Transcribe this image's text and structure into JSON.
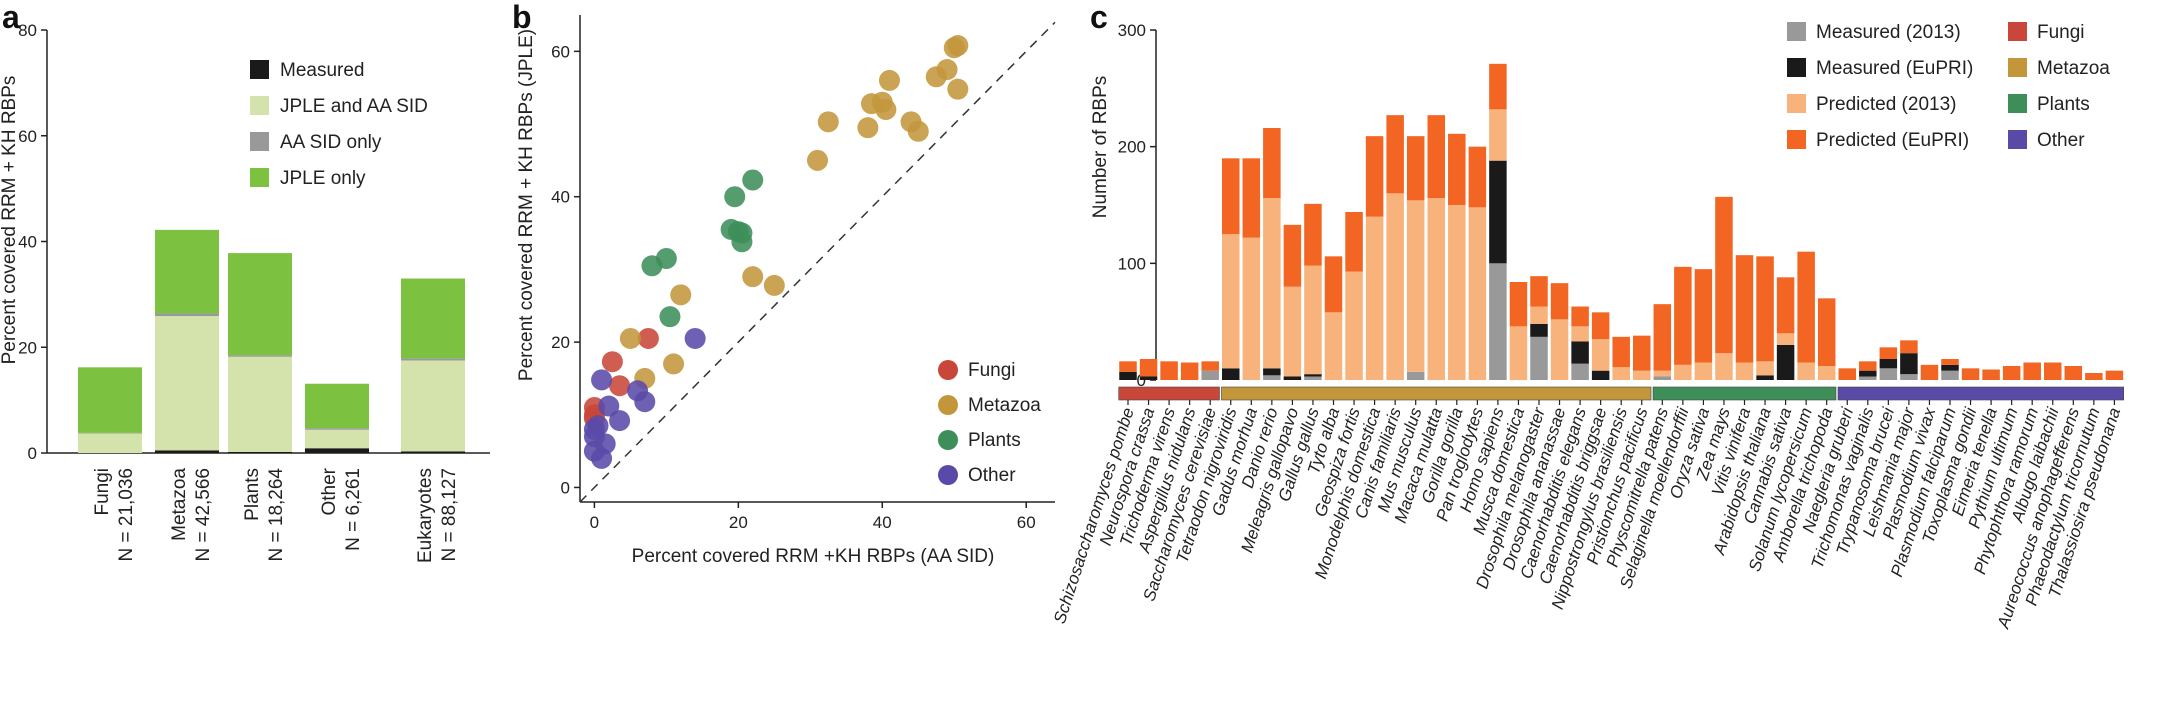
{
  "panel_labels": {
    "a": "a",
    "b": "b",
    "c": "c"
  },
  "chart_data": [
    {
      "type": "bar",
      "stacked": true,
      "title": "",
      "ylabel": "Percent covered RRM + KH RBPs",
      "ylim": [
        0,
        80
      ],
      "yticks": [
        "0",
        "20",
        "40",
        "60",
        "80"
      ],
      "categories": [
        "Fungi",
        "Metazoa",
        "Plants",
        "Other",
        "Eukaryotes"
      ],
      "category_n": [
        "N = 21,036",
        "N = 42,566",
        "N = 18,264",
        "N = 6,261",
        "N = 88,127"
      ],
      "series": [
        {
          "name": "Measured",
          "color": "#1a1a1a",
          "values": [
            0,
            0.5,
            0.2,
            0.9,
            0.3
          ]
        },
        {
          "name": "JPLE and AA SID",
          "color": "#d4e2ab",
          "values": [
            3.7,
            25.4,
            18.0,
            3.5,
            17.2
          ]
        },
        {
          "name": "AA SID only",
          "color": "#999999",
          "values": [
            0.1,
            0.5,
            0.3,
            0.3,
            0.4
          ]
        },
        {
          "name": "JPLE only",
          "color": "#7cc13f",
          "values": [
            12.4,
            15.8,
            19.3,
            8.4,
            15.1
          ]
        }
      ],
      "legend_position": "top-right"
    },
    {
      "type": "scatter",
      "xlabel": "Percent covered RRM +KH RBPs (AA SID)",
      "ylabel": "Percent covered RRM + KH RBPs (JPLE)",
      "xlim": [
        -2,
        64
      ],
      "ylim": [
        -2,
        65
      ],
      "xticks": [
        "0",
        "20",
        "40",
        "60"
      ],
      "yticks": [
        "0",
        "20",
        "40",
        "60"
      ],
      "diagonal": true,
      "legend_position": "bottom-right",
      "series": [
        {
          "name": "Fungi",
          "color": "#c8473a",
          "points": [
            [
              0,
              11
            ],
            [
              0,
              10
            ],
            [
              0,
              9.5
            ],
            [
              2.5,
              17.3
            ],
            [
              3.5,
              14
            ],
            [
              7.5,
              20.5
            ]
          ]
        },
        {
          "name": "Metazoa",
          "color": "#c3963c",
          "points": [
            [
              5,
              20.5
            ],
            [
              7,
              15
            ],
            [
              11,
              17
            ],
            [
              12,
              26.5
            ],
            [
              22,
              29
            ],
            [
              25,
              27.8
            ],
            [
              31,
              45
            ],
            [
              32.5,
              50.3
            ],
            [
              38,
              49.5
            ],
            [
              38.5,
              52.8
            ],
            [
              40,
              53
            ],
            [
              40.5,
              52
            ],
            [
              41,
              56
            ],
            [
              44,
              50.3
            ],
            [
              45,
              49
            ],
            [
              47.5,
              56.5
            ],
            [
              49,
              57.5
            ],
            [
              50,
              60.5
            ],
            [
              50.5,
              60.8
            ],
            [
              50.5,
              54.8
            ]
          ]
        },
        {
          "name": "Plants",
          "color": "#3e8e5a",
          "points": [
            [
              8,
              30.5
            ],
            [
              10,
              31.5
            ],
            [
              10.5,
              23.5
            ],
            [
              19,
              35.5
            ],
            [
              19.5,
              40
            ],
            [
              20,
              35.2
            ],
            [
              20.5,
              35
            ],
            [
              20.5,
              33.8
            ],
            [
              22,
              42.3
            ]
          ]
        },
        {
          "name": "Other",
          "color": "#5a4aa8",
          "points": [
            [
              0,
              8
            ],
            [
              0,
              7
            ],
            [
              0,
              5
            ],
            [
              1,
              4
            ],
            [
              1,
              14.8
            ],
            [
              1.5,
              6
            ],
            [
              2,
              11.2
            ],
            [
              3.5,
              9.2
            ],
            [
              6,
              13.3
            ],
            [
              7,
              11.8
            ],
            [
              14,
              20.5
            ],
            [
              0.5,
              8.5
            ]
          ]
        }
      ]
    },
    {
      "type": "bar",
      "stacked": true,
      "ylabel": "Number of RBPs",
      "ylim": [
        0,
        300
      ],
      "yticks": [
        "0",
        "100",
        "200",
        "300"
      ],
      "legend_position": "top-right",
      "series_meta": [
        {
          "name": "Measured (2013)",
          "color": "#999999"
        },
        {
          "name": "Measured (EuPRI)",
          "color": "#1a1a1a"
        },
        {
          "name": "Predicted (2013)",
          "color": "#f8b27c"
        },
        {
          "name": "Predicted (EuPRI)",
          "color": "#f26522"
        }
      ],
      "group_legend": [
        {
          "name": "Fungi",
          "color": "#c8473a"
        },
        {
          "name": "Metazoa",
          "color": "#c3963c"
        },
        {
          "name": "Plants",
          "color": "#3e8e5a"
        },
        {
          "name": "Other",
          "color": "#5a4aa8"
        }
      ],
      "species": [
        {
          "name": "Schizosaccharomyces pombe",
          "group": "Fungi",
          "m13": 0,
          "meu": 7,
          "p13": 0,
          "peu": 9
        },
        {
          "name": "Neurospora crassa",
          "group": "Fungi",
          "m13": 0,
          "meu": 3,
          "p13": 0,
          "peu": 15
        },
        {
          "name": "Trichoderma virens",
          "group": "Fungi",
          "m13": 0,
          "meu": 0,
          "p13": 0,
          "peu": 16
        },
        {
          "name": "Aspergillus nidulans",
          "group": "Fungi",
          "m13": 0,
          "meu": 0,
          "p13": 0,
          "peu": 15
        },
        {
          "name": "Saccharomyces cerevisiae",
          "group": "Fungi",
          "m13": 8,
          "meu": 0,
          "p13": 0,
          "peu": 8
        },
        {
          "name": "Tetraodon nigroviridis",
          "group": "Metazoa",
          "m13": 0,
          "meu": 10,
          "p13": 115,
          "peu": 65
        },
        {
          "name": "Gadus morhua",
          "group": "Metazoa",
          "m13": 0,
          "meu": 0,
          "p13": 122,
          "peu": 68
        },
        {
          "name": "Danio rerio",
          "group": "Metazoa",
          "m13": 4,
          "meu": 6,
          "p13": 146,
          "peu": 60
        },
        {
          "name": "Meleagris gallopavo",
          "group": "Metazoa",
          "m13": 0,
          "meu": 3,
          "p13": 77,
          "peu": 53
        },
        {
          "name": "Gallus gallus",
          "group": "Metazoa",
          "m13": 3,
          "meu": 2,
          "p13": 93,
          "peu": 53
        },
        {
          "name": "Tyto alba",
          "group": "Metazoa",
          "m13": 0,
          "meu": 0,
          "p13": 58,
          "peu": 48
        },
        {
          "name": "Geospiza fortis",
          "group": "Metazoa",
          "m13": 0,
          "meu": 0,
          "p13": 93,
          "peu": 51
        },
        {
          "name": "Monodelphis domestica",
          "group": "Metazoa",
          "m13": 0,
          "meu": 0,
          "p13": 140,
          "peu": 69
        },
        {
          "name": "Canis familiaris",
          "group": "Metazoa",
          "m13": 0,
          "meu": 0,
          "p13": 160,
          "peu": 67
        },
        {
          "name": "Mus musculus",
          "group": "Metazoa",
          "m13": 7,
          "meu": 0,
          "p13": 147,
          "peu": 55
        },
        {
          "name": "Macaca mulatta",
          "group": "Metazoa",
          "m13": 0,
          "meu": 0,
          "p13": 156,
          "peu": 71
        },
        {
          "name": "Gorilla gorilla",
          "group": "Metazoa",
          "m13": 0,
          "meu": 0,
          "p13": 150,
          "peu": 61
        },
        {
          "name": "Pan troglodytes",
          "group": "Metazoa",
          "m13": 0,
          "meu": 0,
          "p13": 148,
          "peu": 52
        },
        {
          "name": "Homo sapiens",
          "group": "Metazoa",
          "m13": 100,
          "meu": 88,
          "p13": 44,
          "peu": 39
        },
        {
          "name": "Musca domestica",
          "group": "Metazoa",
          "m13": 0,
          "meu": 0,
          "p13": 46,
          "peu": 38
        },
        {
          "name": "Drosophila melanogaster",
          "group": "Metazoa",
          "m13": 37,
          "meu": 11,
          "p13": 15,
          "peu": 26
        },
        {
          "name": "Drosophila ananassae",
          "group": "Metazoa",
          "m13": 0,
          "meu": 0,
          "p13": 52,
          "peu": 31
        },
        {
          "name": "Caenorhabditis elegans",
          "group": "Metazoa",
          "m13": 14,
          "meu": 19,
          "p13": 13,
          "peu": 17
        },
        {
          "name": "Caenorhabditis briggsae",
          "group": "Metazoa",
          "m13": 0,
          "meu": 8,
          "p13": 27,
          "peu": 23
        },
        {
          "name": "Nippostrongylus brasiliensis",
          "group": "Metazoa",
          "m13": 0,
          "meu": 0,
          "p13": 11,
          "peu": 26
        },
        {
          "name": "Pristionchus pacificus",
          "group": "Metazoa",
          "m13": 0,
          "meu": 0,
          "p13": 8,
          "peu": 30
        },
        {
          "name": "Physcomitrella patens",
          "group": "Plants",
          "m13": 3,
          "meu": 0,
          "p13": 5,
          "peu": 57
        },
        {
          "name": "Selaginella moellendorffii",
          "group": "Plants",
          "m13": 0,
          "meu": 0,
          "p13": 13,
          "peu": 84
        },
        {
          "name": "Oryza sativa",
          "group": "Plants",
          "m13": 0,
          "meu": 0,
          "p13": 15,
          "peu": 80
        },
        {
          "name": "Zea mays",
          "group": "Plants",
          "m13": 0,
          "meu": 0,
          "p13": 23,
          "peu": 134
        },
        {
          "name": "Vitis vinifera",
          "group": "Plants",
          "m13": 0,
          "meu": 0,
          "p13": 15,
          "peu": 92
        },
        {
          "name": "Arabidopsis thaliana",
          "group": "Plants",
          "m13": 0,
          "meu": 4,
          "p13": 12,
          "peu": 90
        },
        {
          "name": "Cannabis sativa",
          "group": "Plants",
          "m13": 0,
          "meu": 30,
          "p13": 10,
          "peu": 48
        },
        {
          "name": "Solanum lycopersicum",
          "group": "Plants",
          "m13": 0,
          "meu": 0,
          "p13": 15,
          "peu": 95
        },
        {
          "name": "Amborella trichopoda",
          "group": "Plants",
          "m13": 0,
          "meu": 0,
          "p13": 12,
          "peu": 58
        },
        {
          "name": "Naegleria gruberi",
          "group": "Other",
          "m13": 0,
          "meu": 0,
          "p13": 0,
          "peu": 10
        },
        {
          "name": "Trichomonas vaginalis",
          "group": "Other",
          "m13": 3,
          "meu": 5,
          "p13": 0,
          "peu": 8
        },
        {
          "name": "Trypanosoma brucei",
          "group": "Other",
          "m13": 10,
          "meu": 8,
          "p13": 0,
          "peu": 10
        },
        {
          "name": "Leishmania major",
          "group": "Other",
          "m13": 5,
          "meu": 18,
          "p13": 0,
          "peu": 11
        },
        {
          "name": "Plasmodium vivax",
          "group": "Other",
          "m13": 0,
          "meu": 0,
          "p13": 0,
          "peu": 13
        },
        {
          "name": "Plasmodium falciparum",
          "group": "Other",
          "m13": 8,
          "meu": 5,
          "p13": 0,
          "peu": 5
        },
        {
          "name": "Toxoplasma gondii",
          "group": "Other",
          "m13": 0,
          "meu": 0,
          "p13": 0,
          "peu": 10
        },
        {
          "name": "Eimeria tenella",
          "group": "Other",
          "m13": 0,
          "meu": 0,
          "p13": 0,
          "peu": 9
        },
        {
          "name": "Pythium ultimum",
          "group": "Other",
          "m13": 0,
          "meu": 0,
          "p13": 0,
          "peu": 12
        },
        {
          "name": "Phytophthora ramorum",
          "group": "Other",
          "m13": 0,
          "meu": 0,
          "p13": 0,
          "peu": 15
        },
        {
          "name": "Albugo laibachii",
          "group": "Other",
          "m13": 0,
          "meu": 0,
          "p13": 0,
          "peu": 15
        },
        {
          "name": "Aureococcus anophagefferens",
          "group": "Other",
          "m13": 0,
          "meu": 0,
          "p13": 0,
          "peu": 12
        },
        {
          "name": "Phaeodactylum tricornutum",
          "group": "Other",
          "m13": 0,
          "meu": 0,
          "p13": 0,
          "peu": 6
        },
        {
          "name": "Thalassiosira pseudonana",
          "group": "Other",
          "m13": 0,
          "meu": 0,
          "p13": 0,
          "peu": 8
        }
      ]
    }
  ]
}
